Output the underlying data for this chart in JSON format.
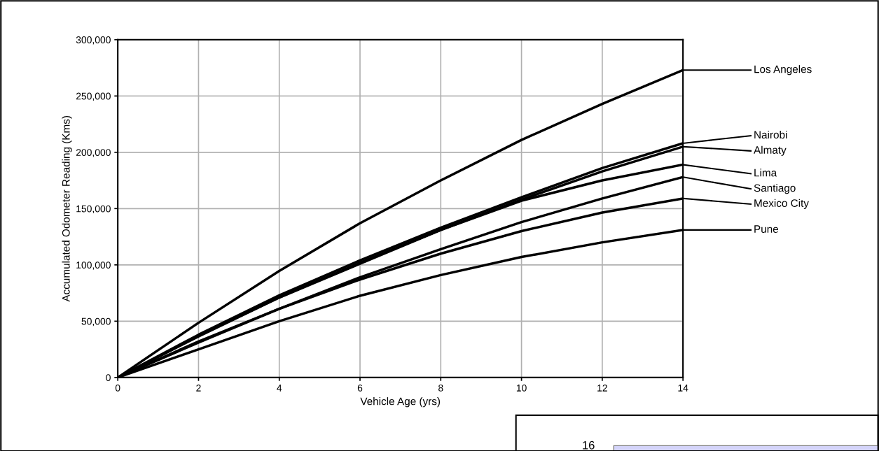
{
  "chart_data": [
    {
      "type": "line",
      "xlabel": "Vehicle Age (yrs)",
      "ylabel": "Accumulated Odometer Reading (Kms)",
      "x": [
        0,
        2,
        4,
        6,
        8,
        10,
        12,
        14
      ],
      "series": [
        {
          "name": "Los Angeles",
          "color": "#000000",
          "values": [
            0,
            48600,
            94600,
            137000,
            175000,
            211000,
            243000,
            273000
          ]
        },
        {
          "name": "Nairobi",
          "color": "#000000",
          "values": [
            0,
            38000,
            73000,
            104000,
            133000,
            160000,
            186000,
            208000
          ]
        },
        {
          "name": "Almaty",
          "color": "#000000",
          "values": [
            0,
            37000,
            71000,
            102000,
            131000,
            158000,
            183000,
            205000
          ]
        },
        {
          "name": "Lima",
          "color": "#000000",
          "values": [
            0,
            36500,
            71000,
            101000,
            131000,
            157000,
            175000,
            189000
          ]
        },
        {
          "name": "Santiago",
          "color": "#000000",
          "values": [
            0,
            32000,
            61000,
            89000,
            114000,
            138000,
            159000,
            178000
          ]
        },
        {
          "name": "Mexico City",
          "color": "#000000",
          "values": [
            0,
            31000,
            61000,
            87000,
            110000,
            130000,
            146500,
            159000
          ]
        },
        {
          "name": "Pune",
          "color": "#000000",
          "values": [
            0,
            25000,
            50000,
            72600,
            91000,
            107000,
            120000,
            131000
          ]
        }
      ],
      "xlim": [
        0,
        14
      ],
      "xticks": [
        0,
        2,
        4,
        6,
        8,
        10,
        12,
        14
      ],
      "ylim": [
        0,
        300000
      ],
      "yticks": [
        {
          "value": 0,
          "label": "0"
        },
        {
          "value": 50000,
          "label": "50,000"
        },
        {
          "value": 100000,
          "label": "100,000"
        },
        {
          "value": 150000,
          "label": "150,000"
        },
        {
          "value": 200000,
          "label": "200,000"
        },
        {
          "value": 250000,
          "label": "250,000"
        },
        {
          "value": 300000,
          "label": "300,000"
        }
      ],
      "grid": true,
      "legend": false,
      "marker": "none",
      "line_style": "solid"
    },
    {
      "type": "other",
      "annotations": [
        "16"
      ]
    }
  ]
}
